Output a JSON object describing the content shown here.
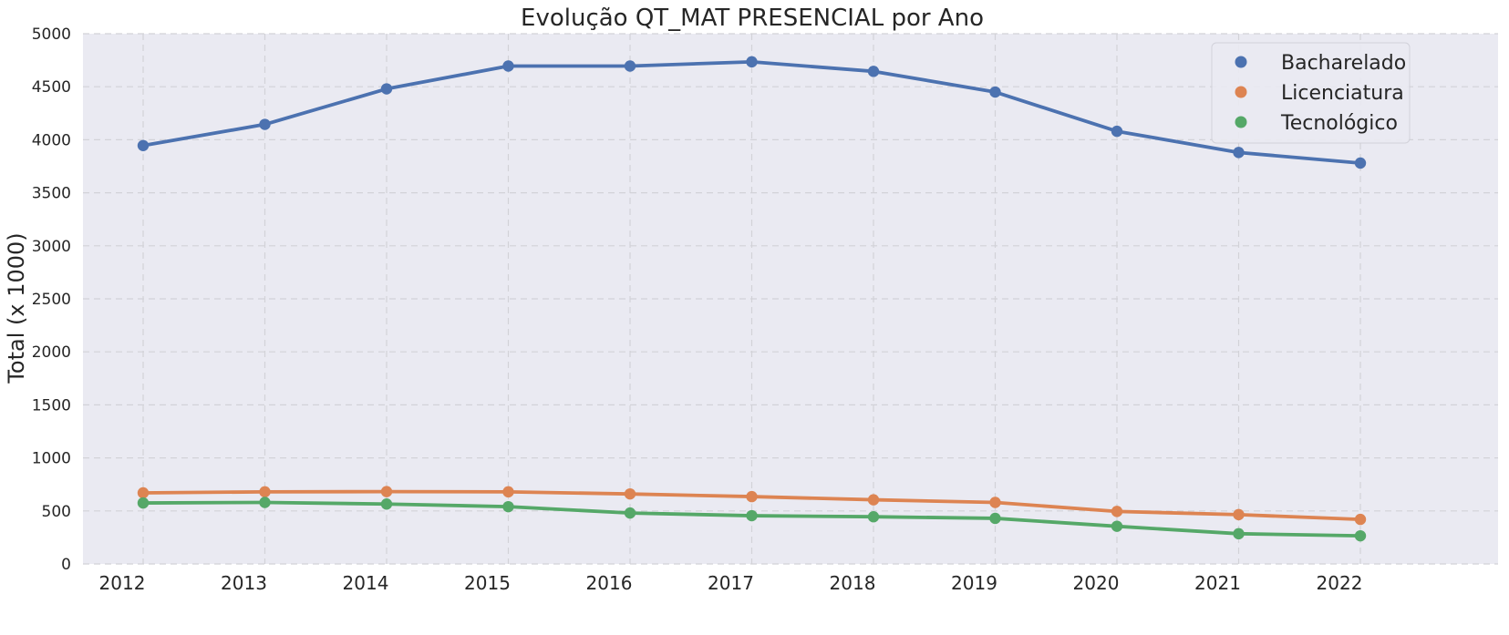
{
  "chart_data": {
    "type": "line",
    "title": "Evolução QT_MAT PRESENCIAL por Ano",
    "xlabel": "",
    "ylabel": "Total (x 1000)",
    "x": [
      "2012",
      "2013",
      "2014",
      "2015",
      "2016",
      "2017",
      "2018",
      "2019",
      "2020",
      "2021",
      "2022"
    ],
    "yticks": [
      "0",
      "500",
      "1000",
      "1500",
      "2000",
      "2500",
      "3000",
      "3500",
      "4000",
      "4500",
      "5000"
    ],
    "ylim": [
      0,
      5000
    ],
    "grid": true,
    "legend_position": "top-right",
    "series": [
      {
        "name": "Bacharelado",
        "color": "#4c72b0",
        "values": [
          3945,
          4145,
          4480,
          4695,
          4695,
          4735,
          4645,
          4450,
          4080,
          3880,
          3780
        ]
      },
      {
        "name": "Licenciatura",
        "color": "#dd8452",
        "values": [
          670,
          680,
          682,
          680,
          660,
          635,
          605,
          580,
          495,
          465,
          420
        ]
      },
      {
        "name": "Tecnológico",
        "color": "#55a868",
        "values": [
          575,
          580,
          565,
          540,
          480,
          455,
          445,
          430,
          355,
          285,
          265
        ]
      }
    ]
  }
}
